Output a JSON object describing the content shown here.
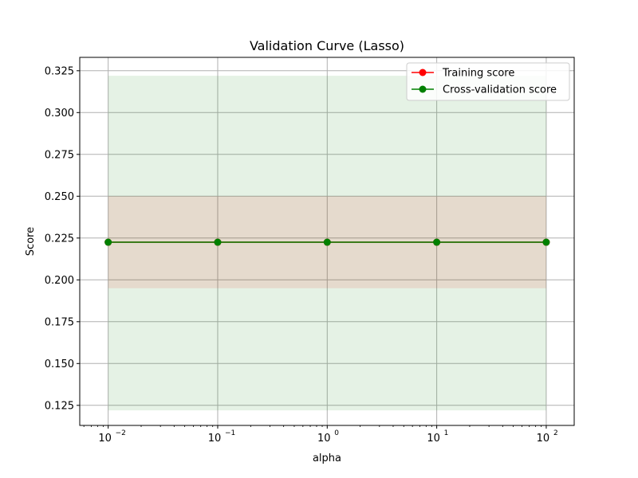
{
  "chart_data": {
    "type": "line",
    "title": "Validation Curve (Lasso)",
    "xlabel": "alpha",
    "ylabel": "Score",
    "x_scale": "log",
    "x": [
      0.01,
      0.1,
      1,
      10,
      100
    ],
    "x_tick_labels": [
      {
        "base": "10",
        "exp": "−2"
      },
      {
        "base": "10",
        "exp": "−1"
      },
      {
        "base": "10",
        "exp": "0"
      },
      {
        "base": "10",
        "exp": "1"
      },
      {
        "base": "10",
        "exp": "2"
      }
    ],
    "y_ticks": [
      "0.125",
      "0.150",
      "0.175",
      "0.200",
      "0.225",
      "0.250",
      "0.275",
      "0.300",
      "0.325"
    ],
    "xlim": [
      0.0055,
      180
    ],
    "ylim": [
      0.113,
      0.333
    ],
    "grid": true,
    "legend_position": "upper right",
    "series": [
      {
        "name": "Training score",
        "color": "#ff0000",
        "values": [
          0.2225,
          0.2225,
          0.2225,
          0.2225,
          0.2225
        ],
        "band_lower": [
          0.195,
          0.195,
          0.195,
          0.195,
          0.195
        ],
        "band_upper": [
          0.25,
          0.25,
          0.25,
          0.25,
          0.25
        ]
      },
      {
        "name": "Cross-validation score",
        "color": "#008000",
        "values": [
          0.2225,
          0.2225,
          0.2225,
          0.2225,
          0.2225
        ],
        "band_lower": [
          0.122,
          0.122,
          0.122,
          0.122,
          0.122
        ],
        "band_upper": [
          0.322,
          0.322,
          0.322,
          0.322,
          0.322
        ]
      }
    ]
  }
}
